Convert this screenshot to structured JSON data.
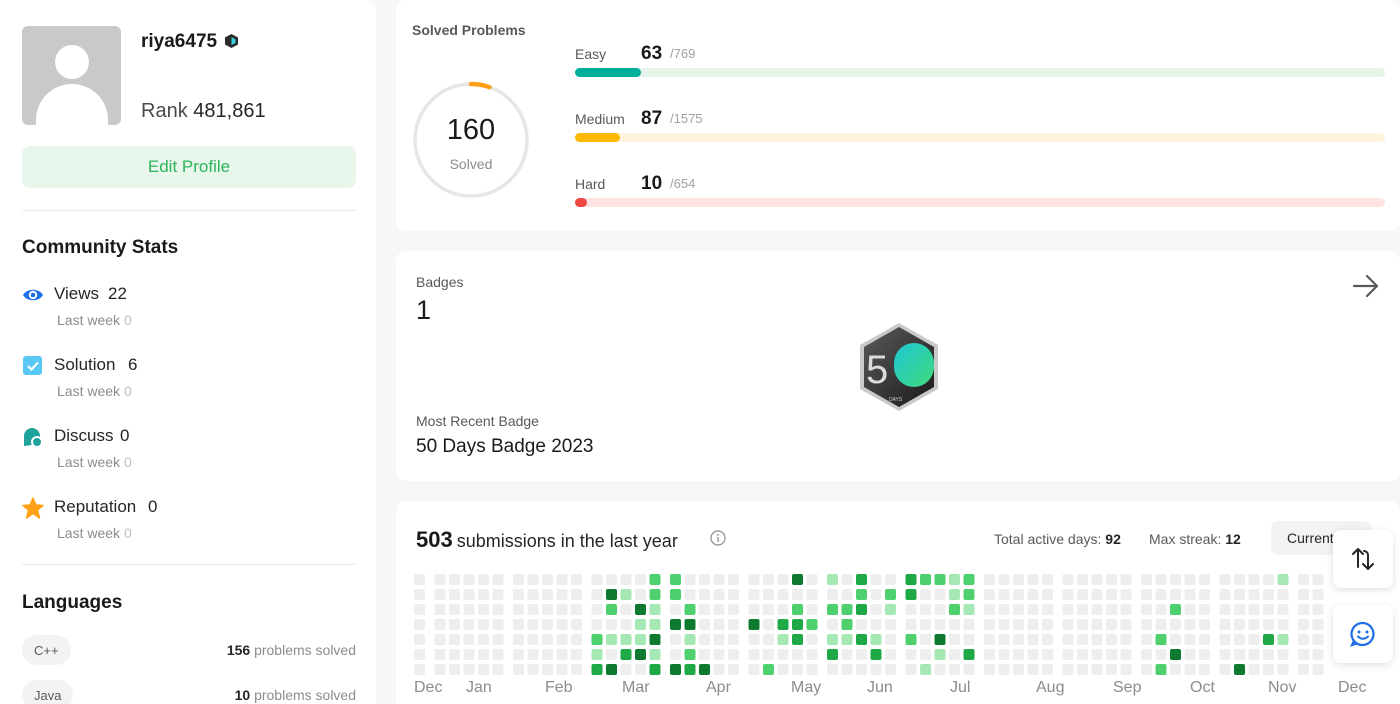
{
  "profile": {
    "username": "riya6475",
    "rank_label": "Rank",
    "rank_value": "481,861",
    "edit_profile_label": "Edit Profile"
  },
  "community": {
    "title": "Community Stats",
    "stats": [
      {
        "label": "Views",
        "value": "22",
        "sub_label": "Last week",
        "sub_value": "0",
        "icon": "eye-icon"
      },
      {
        "label": "Solution",
        "value": "6",
        "sub_label": "Last week",
        "sub_value": "0",
        "icon": "checkbox-icon"
      },
      {
        "label": "Discuss",
        "value": "0",
        "sub_label": "Last week",
        "sub_value": "0",
        "icon": "discuss-icon"
      },
      {
        "label": "Reputation",
        "value": "0",
        "sub_label": "Last week",
        "sub_value": "0",
        "icon": "star-icon"
      }
    ]
  },
  "languages": {
    "title": "Languages",
    "items": [
      {
        "name": "C++",
        "count": "156",
        "suffix": "problems solved"
      },
      {
        "name": "Java",
        "count": "10",
        "suffix": "problems solved"
      }
    ]
  },
  "solved": {
    "title": "Solved Problems",
    "total": "160",
    "total_label": "Solved",
    "ring_progress": 0.0533,
    "difficulties": [
      {
        "label": "Easy",
        "count": "63",
        "total": "/769",
        "fraction": 0.0819,
        "color": "#00af9b",
        "track": "#e5f5ea"
      },
      {
        "label": "Medium",
        "count": "87",
        "total": "/1575",
        "fraction": 0.0552,
        "color": "#ffb800",
        "track": "#fff3dc"
      },
      {
        "label": "Hard",
        "count": "10",
        "total": "/654",
        "fraction": 0.0153,
        "color": "#ef4743",
        "track": "#fde3e2"
      }
    ]
  },
  "badges": {
    "label": "Badges",
    "count": "1",
    "recent_label": "Most Recent Badge",
    "recent_name": "50 Days Badge 2023",
    "badge_text": "DAYS"
  },
  "submissions": {
    "count": "503",
    "label": "submissions in the last year",
    "active_days_label": "Total active days:",
    "active_days": "92",
    "max_streak_label": "Max streak:",
    "max_streak": "12",
    "current_label": "Current",
    "months": [
      "Dec",
      "Jan",
      "Feb",
      "Mar",
      "Apr",
      "May",
      "Jun",
      "Jul",
      "Aug",
      "Sep",
      "Oct",
      "Nov",
      "Dec"
    ]
  }
}
